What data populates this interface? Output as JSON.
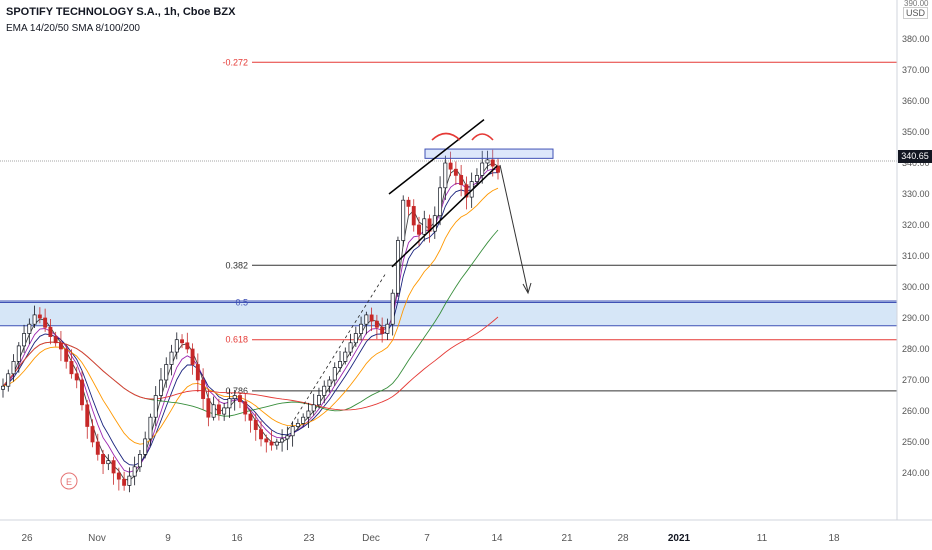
{
  "header": {
    "symbol": "SPOTIFY TECHNOLOGY S.A., 1h, Cboe BZX",
    "indicators": "EMA 14/20/50 SMA 8/100/200"
  },
  "axis": {
    "currency": "USD",
    "current_price": "340.65",
    "current_price_value": 340.65,
    "top_partial": "390.00"
  },
  "colors": {
    "fib_red": "#e53935",
    "fib_black": "#333333",
    "zone_fill": "#d6e6f7",
    "zone_line": "#3f51b5",
    "candle_up": "#131722",
    "candle_down": "#c62828",
    "ema14": "#9c27b0",
    "ema20": "#1a237e",
    "ema50": "#ff9800",
    "sma100": "#388e3c",
    "sma200": "#e53935",
    "sma8": "#424242"
  },
  "chart_data": {
    "type": "candlestick",
    "y_axis_ticks": [
      240,
      250,
      260,
      270,
      280,
      290,
      300,
      310,
      320,
      330,
      340,
      350,
      360,
      370,
      380
    ],
    "y_axis_labels": [
      "240.00",
      "250.00",
      "260.00",
      "270.00",
      "280.00",
      "290.00",
      "300.00",
      "310.00",
      "320.00",
      "330.00",
      "340.00",
      "350.00",
      "360.00",
      "370.00",
      "380.00"
    ],
    "ylim": [
      228,
      393
    ],
    "x_axis_labels": [
      "26",
      "Nov",
      "9",
      "16",
      "23",
      "Dec",
      "7",
      "14",
      "21",
      "28",
      "2021",
      "11",
      "18"
    ],
    "fib_levels": [
      {
        "label": "-0.272",
        "price": 372.5,
        "color": "red"
      },
      {
        "label": "0.382",
        "price": 307.0,
        "color": "black"
      },
      {
        "label": "0.5",
        "price": 295.0,
        "color": "blue"
      },
      {
        "label": "0.618",
        "price": 283.0,
        "color": "red"
      },
      {
        "label": "0.786",
        "price": 266.5,
        "color": "black"
      }
    ],
    "support_zone": [
      287.5,
      295.5
    ],
    "resistance_box": [
      341.5,
      344.5
    ],
    "current_price": 340.65,
    "closes": [
      268,
      272,
      276,
      281,
      285,
      288,
      291,
      290,
      287,
      284,
      282,
      280,
      276,
      272,
      270,
      262,
      255,
      250,
      246,
      243,
      244,
      240,
      238,
      236,
      239,
      242,
      246,
      251,
      258,
      265,
      270,
      275,
      279,
      283,
      282,
      280,
      275,
      270,
      264,
      258,
      262,
      259,
      261,
      264,
      265,
      263,
      259,
      257,
      254,
      251,
      250,
      249,
      250,
      251,
      252,
      255,
      256,
      258,
      260,
      262,
      265,
      268,
      270,
      274,
      276,
      279,
      282,
      285,
      288,
      291,
      289,
      287,
      285,
      288,
      298,
      315,
      328,
      326,
      320,
      317,
      322,
      318,
      323,
      332,
      340,
      338,
      336,
      333,
      329,
      334,
      336,
      340,
      341,
      339,
      337
    ]
  }
}
